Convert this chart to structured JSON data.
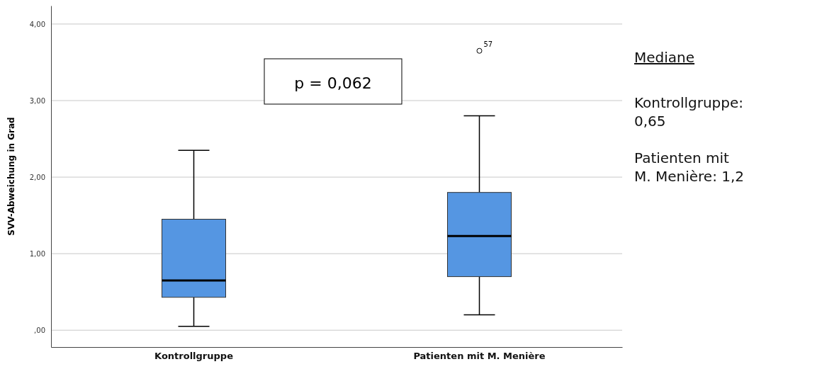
{
  "chart_data": {
    "type": "box",
    "ylabel": "SVV-Abweichung in Grad",
    "categories": [
      "Kontrollgruppe",
      "Patienten mit M. Menière"
    ],
    "color": "#5596e2",
    "boxes": [
      {
        "low": 0.05,
        "q1": 0.43,
        "median": 0.65,
        "q3": 1.45,
        "high": 2.35
      },
      {
        "low": 0.2,
        "q1": 0.7,
        "median": 1.23,
        "q3": 1.8,
        "high": 2.8,
        "outliers": [
          3.65
        ]
      }
    ],
    "ylim": [
      -0.22,
      4.24
    ],
    "yticks": [
      {
        "value": 0,
        "label": ",00"
      },
      {
        "value": 1,
        "label": "1,00"
      },
      {
        "value": 2,
        "label": "2,00"
      },
      {
        "value": 3,
        "label": "3,00"
      },
      {
        "value": 4,
        "label": "4,00"
      }
    ],
    "grid": "y",
    "annotations": [
      "p = 0,062",
      "57",
      "Mediane",
      "Kontrollgruppe: 0,65",
      "Patienten mit M. Menière: 1,2"
    ]
  }
}
